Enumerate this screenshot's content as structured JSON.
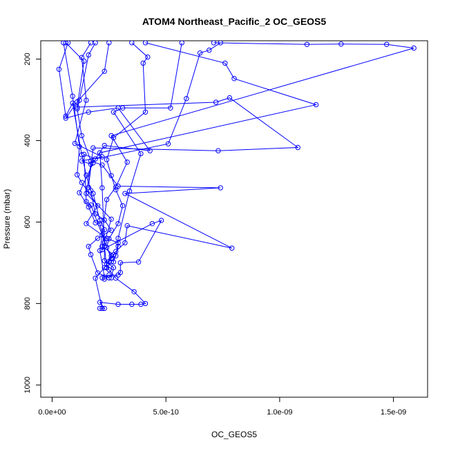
{
  "chart_data": {
    "type": "line",
    "title": "ATOM4 Northeast_Pacific_2 OC_GEOS5",
    "xlabel": "OC_GEOS5",
    "ylabel": "Pressure (mbar)",
    "xlim": [
      -5e-11,
      1.65e-09
    ],
    "ylim": [
      1030,
      155
    ],
    "y_reversed": true,
    "x_ticks": [
      0,
      5e-10,
      1e-09,
      1.5e-09
    ],
    "x_tick_labels": [
      "0.0e+00",
      "5.0e-10",
      "1.0e-09",
      "1.5e-09"
    ],
    "y_ticks": [
      200,
      400,
      600,
      800,
      1000
    ],
    "y_tick_labels": [
      "200",
      "400",
      "600",
      "800",
      "1000"
    ],
    "grid": false,
    "marker": "open-circle",
    "color": "#0000ff",
    "series": [
      {
        "points": [
          [
            2.1e-10,
            812
          ],
          [
            2.3e-10,
            812
          ],
          [
            2.1e-10,
            797
          ],
          [
            2.9e-10,
            802
          ],
          [
            3.5e-10,
            802
          ],
          [
            3.9e-10,
            802
          ],
          [
            4.1e-10,
            800
          ],
          [
            3.6e-10,
            771
          ],
          [
            2.8e-10,
            738
          ],
          [
            2.5e-10,
            717
          ],
          [
            2.4e-10,
            703
          ],
          [
            2.6e-10,
            683
          ],
          [
            2.4e-10,
            662
          ],
          [
            2.5e-10,
            641
          ],
          [
            2.9e-10,
            604
          ],
          [
            3.1e-10,
            560
          ],
          [
            2.8e-10,
            521
          ],
          [
            2.6e-10,
            486
          ],
          [
            2.4e-10,
            447
          ],
          [
            2.7e-10,
            393
          ],
          [
            4.1e-10,
            330
          ],
          [
            4e-10,
            210
          ],
          [
            4.2e-10,
            195
          ],
          [
            3.5e-10,
            160
          ]
        ]
      },
      {
        "points": [
          [
            2.2e-10,
            812
          ],
          [
            1.9e-10,
            738
          ],
          [
            2.3e-10,
            712
          ],
          [
            2.8e-10,
            672
          ],
          [
            3.2e-10,
            651
          ],
          [
            3.3e-10,
            609
          ],
          [
            7.9e-10,
            664
          ],
          [
            3.2e-10,
            530
          ],
          [
            7.4e-10,
            516
          ],
          [
            2.9e-10,
            512
          ],
          [
            2.2e-10,
            460
          ],
          [
            1.7e-10,
            450
          ],
          [
            1.3e-10,
            388
          ],
          [
            1.1e-10,
            322
          ],
          [
            1.2e-10,
            301
          ],
          [
            1.6e-10,
            190
          ],
          [
            1.9e-10,
            160
          ]
        ]
      },
      {
        "points": [
          [
            2.2e-10,
            737
          ],
          [
            2.5e-10,
            730
          ],
          [
            2.9e-10,
            730
          ],
          [
            3e-10,
            724
          ],
          [
            3e-10,
            700
          ],
          [
            3.8e-10,
            698
          ],
          [
            4.8e-10,
            596
          ],
          [
            4.4e-10,
            604
          ],
          [
            2.2e-10,
            668
          ],
          [
            2.6e-10,
            593
          ],
          [
            1.5e-10,
            530
          ],
          [
            1.7e-10,
            458
          ],
          [
            1.3e-10,
            450
          ],
          [
            2.2e-10,
            440
          ],
          [
            1e-10,
            407
          ],
          [
            1.5e-10,
            301
          ],
          [
            1.3e-10,
            196
          ],
          [
            1.7e-10,
            160
          ]
        ]
      },
      {
        "points": [
          [
            2.6e-10,
            737
          ],
          [
            2.7e-10,
            712
          ],
          [
            2.3e-10,
            695
          ],
          [
            2.3e-10,
            650
          ],
          [
            2.1e-10,
            604
          ],
          [
            1.9e-10,
            602
          ],
          [
            1.6e-10,
            563
          ],
          [
            1.2e-10,
            528
          ],
          [
            1.8e-10,
            455
          ],
          [
            2.3e-10,
            412
          ],
          [
            4.3e-10,
            425
          ],
          [
            2.9e-10,
            320
          ],
          [
            1.6e-10,
            330
          ],
          [
            6e-11,
            345
          ],
          [
            1.1e-10,
            305
          ],
          [
            2.3e-10,
            230
          ],
          [
            2.5e-10,
            160
          ]
        ]
      },
      {
        "points": [
          [
            2.5e-10,
            737
          ],
          [
            2e-10,
            725
          ],
          [
            1.7e-10,
            680
          ],
          [
            1.6e-10,
            660
          ],
          [
            2e-10,
            640
          ],
          [
            2.6e-10,
            620
          ],
          [
            2.3e-10,
            595
          ],
          [
            1.9e-10,
            580
          ],
          [
            1.7e-10,
            523
          ],
          [
            1.5e-10,
            485
          ],
          [
            1.3e-10,
            435
          ],
          [
            9e-11,
            308
          ],
          [
            6e-11,
            340
          ],
          [
            3e-11,
            225
          ],
          [
            7e-11,
            160
          ]
        ]
      },
      {
        "points": [
          [
            2.4e-10,
            712
          ],
          [
            2.6e-10,
            698
          ],
          [
            2.8e-10,
            683
          ],
          [
            2.9e-10,
            651
          ],
          [
            2.4e-10,
            640
          ],
          [
            1.5e-10,
            604
          ],
          [
            2e-10,
            560
          ],
          [
            1.3e-10,
            503
          ],
          [
            1.1e-10,
            484
          ],
          [
            1.2e-10,
            415
          ],
          [
            9e-11,
            291
          ],
          [
            5e-11,
            160
          ]
        ]
      },
      {
        "points": [
          [
            2.5e-10,
            697
          ],
          [
            2.7e-10,
            680
          ],
          [
            2.2e-10,
            660
          ],
          [
            2.3e-10,
            619
          ],
          [
            2.1e-10,
            596
          ],
          [
            1.8e-10,
            530
          ],
          [
            1.6e-10,
            515
          ],
          [
            1.8e-10,
            418
          ],
          [
            7.3e-10,
            425
          ],
          [
            1.08e-09,
            417
          ],
          [
            7.8e-10,
            295
          ],
          [
            7.2e-10,
            306
          ],
          [
            1.1e-10,
            318
          ],
          [
            1.4e-10,
            205
          ],
          [
            6e-11,
            160
          ]
        ]
      },
      {
        "points": [
          [
            2.4e-10,
            712
          ],
          [
            2.3e-10,
            660
          ],
          [
            2.2e-10,
            516
          ],
          [
            2.1e-10,
            430
          ],
          [
            1.16e-09,
            312
          ],
          [
            8e-10,
            248
          ],
          [
            7.6e-10,
            210
          ],
          [
            4.1e-10,
            160
          ]
        ]
      },
      {
        "points": [
          [
            2.6e-10,
            690
          ],
          [
            1.7e-10,
            558
          ],
          [
            1.5e-10,
            550
          ],
          [
            1.4e-10,
            434
          ],
          [
            1.9e-10,
            445
          ],
          [
            5.1e-10,
            408
          ],
          [
            5.9e-10,
            297
          ],
          [
            6.5e-10,
            185
          ],
          [
            6.9e-10,
            178
          ],
          [
            7.4e-10,
            160
          ]
        ]
      },
      {
        "points": [
          [
            2.7e-10,
            698
          ],
          [
            2.9e-10,
            660
          ],
          [
            2.9e-10,
            640
          ],
          [
            3.4e-10,
            524
          ],
          [
            3.9e-10,
            432
          ],
          [
            2.7e-10,
            330
          ],
          [
            3.1e-10,
            320
          ],
          [
            5.2e-10,
            320
          ],
          [
            5.7e-10,
            160
          ]
        ]
      },
      {
        "points": [
          [
            2.3e-10,
            740
          ],
          [
            2.3e-10,
            735
          ],
          [
            2.1e-10,
            670
          ],
          [
            2.2e-10,
            632
          ],
          [
            2.4e-10,
            545
          ],
          [
            2.8e-10,
            514
          ],
          [
            3.3e-10,
            453
          ],
          [
            2.6e-10,
            388
          ],
          [
            1.59e-09,
            173
          ],
          [
            1.47e-09,
            164
          ],
          [
            1.27e-09,
            163
          ],
          [
            1.12e-09,
            164
          ],
          [
            7.1e-10,
            160
          ]
        ]
      }
    ]
  }
}
